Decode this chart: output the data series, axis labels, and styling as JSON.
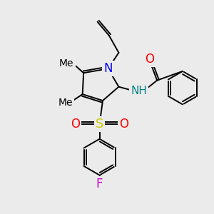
{
  "bg_color": "#ebebeb",
  "bond_color": "#000000",
  "bond_width": 1.4,
  "atom_colors": {
    "N": "#0000ff",
    "O": "#ff0000",
    "S": "#cccc00",
    "F": "#cc00cc",
    "NH": "#008080",
    "C": "#000000"
  },
  "font_size": 11,
  "fig_size": [
    3.0,
    3.0
  ],
  "dpi": 100,
  "xlim": [
    0,
    10
  ],
  "ylim": [
    0,
    10
  ]
}
